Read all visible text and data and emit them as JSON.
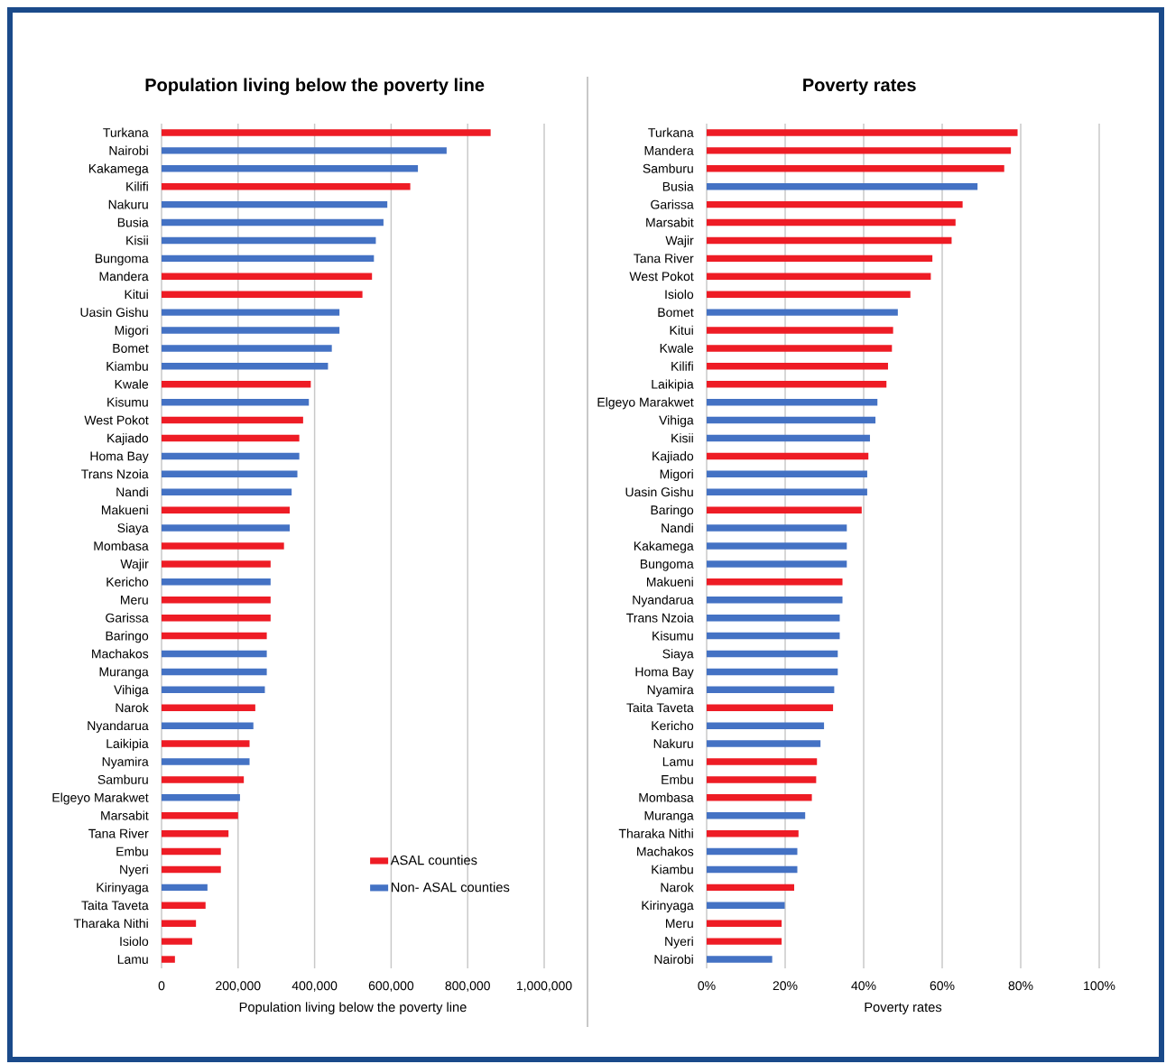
{
  "chart_data": [
    {
      "type": "bar",
      "orientation": "horizontal",
      "title": "Population living below the poverty line",
      "xlabel": "Population living below the poverty line",
      "categories": [
        "Turkana",
        "Nairobi",
        "Kakamega",
        "Kilifi",
        "Nakuru",
        "Busia",
        "Kisii",
        "Bungoma",
        "Mandera",
        "Kitui",
        "Uasin Gishu",
        "Migori",
        "Bomet",
        "Kiambu",
        "Kwale",
        "Kisumu",
        "West Pokot",
        "Kajiado",
        "Homa Bay",
        "Trans Nzoia",
        "Nandi",
        "Makueni",
        "Siaya",
        "Mombasa",
        "Wajir",
        "Kericho",
        "Meru",
        "Garissa",
        "Baringo",
        "Machakos",
        "Muranga",
        "Vihiga",
        "Narok",
        "Nyandarua",
        "Laikipia",
        "Nyamira",
        "Samburu",
        "Elgeyo Marakwet",
        "Marsabit",
        "Tana River",
        "Embu",
        "Nyeri",
        "Kirinyaga",
        "Taita Taveta",
        "Tharaka Nithi",
        "Isiolo",
        "Lamu"
      ],
      "series": [
        {
          "name": "ASAL counties",
          "color": "#ee1c25",
          "values": [
            860000,
            null,
            null,
            650000,
            null,
            null,
            null,
            null,
            550000,
            525000,
            null,
            null,
            null,
            null,
            390000,
            null,
            370000,
            360000,
            null,
            null,
            null,
            335000,
            null,
            320000,
            285000,
            null,
            285000,
            285000,
            275000,
            null,
            null,
            null,
            245000,
            null,
            230000,
            null,
            215000,
            null,
            200000,
            175000,
            155000,
            155000,
            null,
            115000,
            90000,
            80000,
            35000
          ]
        },
        {
          "name": "Non- ASAL counties",
          "color": "#4472c4",
          "values": [
            null,
            745000,
            670000,
            null,
            590000,
            580000,
            560000,
            555000,
            null,
            null,
            465000,
            465000,
            445000,
            435000,
            null,
            385000,
            null,
            null,
            360000,
            355000,
            340000,
            null,
            335000,
            null,
            null,
            285000,
            null,
            null,
            null,
            275000,
            275000,
            270000,
            null,
            240000,
            null,
            230000,
            null,
            205000,
            null,
            null,
            null,
            null,
            120000,
            null,
            null,
            null,
            null
          ]
        }
      ],
      "xlim": [
        0,
        1000000
      ],
      "xticks": [
        0,
        {
          "value": 200000,
          "label": "200,000"
        },
        {
          "value": 400000,
          "label": "400,000"
        },
        {
          "value": 600000,
          "label": "600,000"
        },
        {
          "value": 800000,
          "label": "800,000"
        },
        {
          "value": 1000000,
          "label": "1,000,000"
        }
      ],
      "grid": "x",
      "legend": "bottom right"
    },
    {
      "type": "bar",
      "orientation": "horizontal",
      "title": "Poverty rates",
      "xlabel": "Poverty rates",
      "categories": [
        "Turkana",
        "Mandera",
        "Samburu",
        "Busia",
        "Garissa",
        "Marsabit",
        "Wajir",
        "Tana River",
        "West Pokot",
        "Isiolo",
        "Bomet",
        "Kitui",
        "Kwale",
        "Kilifi",
        "Laikipia",
        "Elgeyo Marakwet",
        "Vihiga",
        "Kisii",
        "Kajiado",
        "Migori",
        "Uasin Gishu",
        "Baringo",
        "Nandi",
        "Kakamega",
        "Bungoma",
        "Makueni",
        "Nyandarua",
        "Trans Nzoia",
        "Kisumu",
        "Siaya",
        "Homa Bay",
        "Nyamira",
        "Taita Taveta",
        "Kericho",
        "Nakuru",
        "Lamu",
        "Embu",
        "Mombasa",
        "Muranga",
        "Tharaka Nithi",
        "Machakos",
        "Kiambu",
        "Narok",
        "Kirinyaga",
        "Meru",
        "Nyeri",
        "Nairobi"
      ],
      "values": [
        79.2,
        77.5,
        75.8,
        69.0,
        65.2,
        63.4,
        62.4,
        57.5,
        57.1,
        51.9,
        48.7,
        47.5,
        47.2,
        46.2,
        45.8,
        43.5,
        43.0,
        41.6,
        41.2,
        40.9,
        40.9,
        39.5,
        35.7,
        35.7,
        35.7,
        34.6,
        34.6,
        33.9,
        33.9,
        33.4,
        33.4,
        32.5,
        32.2,
        29.9,
        29.0,
        28.1,
        27.9,
        26.8,
        25.1,
        23.4,
        23.1,
        23.1,
        22.3,
        19.9,
        19.1,
        19.1,
        16.7
      ],
      "colors": [
        "#ee1c25",
        "#ee1c25",
        "#ee1c25",
        "#4472c4",
        "#ee1c25",
        "#ee1c25",
        "#ee1c25",
        "#ee1c25",
        "#ee1c25",
        "#ee1c25",
        "#4472c4",
        "#ee1c25",
        "#ee1c25",
        "#ee1c25",
        "#ee1c25",
        "#4472c4",
        "#4472c4",
        "#4472c4",
        "#ee1c25",
        "#4472c4",
        "#4472c4",
        "#ee1c25",
        "#4472c4",
        "#4472c4",
        "#4472c4",
        "#ee1c25",
        "#4472c4",
        "#4472c4",
        "#4472c4",
        "#4472c4",
        "#4472c4",
        "#4472c4",
        "#ee1c25",
        "#4472c4",
        "#4472c4",
        "#ee1c25",
        "#ee1c25",
        "#ee1c25",
        "#4472c4",
        "#ee1c25",
        "#4472c4",
        "#4472c4",
        "#ee1c25",
        "#4472c4",
        "#ee1c25",
        "#ee1c25",
        "#4472c4"
      ],
      "xlim": [
        0,
        100
      ],
      "xticks": [
        {
          "value": 0,
          "label": "0%"
        },
        {
          "value": 20,
          "label": "20%"
        },
        {
          "value": 40,
          "label": "40%"
        },
        {
          "value": 60,
          "label": "60%"
        },
        {
          "value": 80,
          "label": "80%"
        },
        {
          "value": 100,
          "label": "100%"
        }
      ],
      "grid": "x"
    }
  ]
}
